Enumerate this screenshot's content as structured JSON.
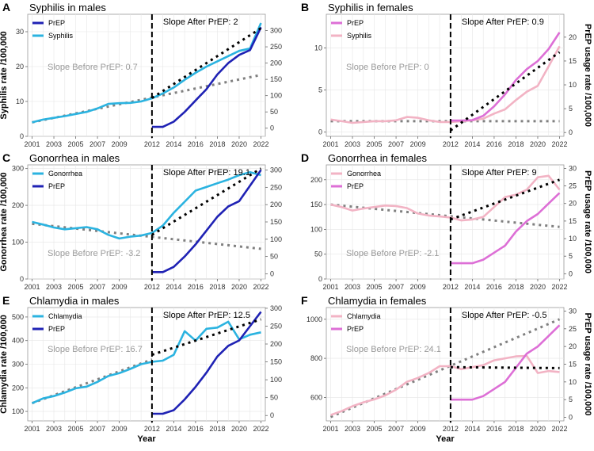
{
  "x_axis_title": "Year",
  "right_axis_title": "PrEP usage rate /100,000",
  "colors": {
    "prep_male": "#1f22b4",
    "disease_male": "#2bb3e0",
    "prep_female": "#dd6fd6",
    "disease_female": "#f2b3c4",
    "before_trend": "#808080",
    "after_trend": "#000000",
    "grid": "#e6e6e6"
  },
  "chart_data": [
    {
      "id": "A",
      "type": "line",
      "panel_letter": "A",
      "title": "Syphilis in males",
      "ylabel": "Syphilis rate /100,000",
      "left_ylim": [
        0,
        35
      ],
      "left_ticks": [
        0,
        10,
        20,
        30
      ],
      "right_ylim": [
        -25,
        350
      ],
      "right_ticks": [
        0,
        50,
        100,
        150,
        200,
        250,
        300
      ],
      "xlim": [
        2000.6,
        2022.4
      ],
      "x_ticks": [
        "2001",
        "2003",
        "2005",
        "2007",
        "2009",
        "2012",
        "2014",
        "2016",
        "2018",
        "2020",
        "2022"
      ],
      "show_year_label": false,
      "legend": [
        {
          "label": "PrEP",
          "series": "prep"
        },
        {
          "label": "Syphilis",
          "series": "disease"
        }
      ],
      "disease": {
        "name": "Syphilis",
        "color": "#2bb3e0",
        "x": [
          2001,
          2002,
          2003,
          2004,
          2005,
          2006,
          2007,
          2008,
          2009,
          2010,
          2011,
          2012,
          2013,
          2014,
          2015,
          2016,
          2017,
          2018,
          2019,
          2020,
          2021,
          2022
        ],
        "y": [
          4,
          4.8,
          5.3,
          5.8,
          6.4,
          7,
          8,
          9.3,
          9.5,
          9.6,
          10,
          10.9,
          12.3,
          14,
          16.2,
          18.2,
          20,
          21.5,
          23,
          24.5,
          25.2,
          32.5
        ]
      },
      "prep": {
        "name": "PrEP",
        "color": "#1f22b4",
        "x": [
          2012,
          2013,
          2014,
          2015,
          2016,
          2017,
          2018,
          2019,
          2020,
          2021,
          2022
        ],
        "y": [
          4,
          4,
          20,
          50,
          85,
          120,
          165,
          200,
          225,
          240,
          310
        ]
      },
      "before_trend": {
        "x": [
          2001,
          2022
        ],
        "y": [
          4,
          17.6
        ]
      },
      "after_trend": {
        "x": [
          2012,
          2022
        ],
        "y": [
          11,
          31
        ]
      },
      "slope_before": "Slope Before PrEP: 0.7",
      "slope_after": "Slope After PrEP: 2"
    },
    {
      "id": "B",
      "type": "line",
      "panel_letter": "B",
      "title": "Syphilis in females",
      "ylabel": "",
      "left_ylim": [
        -0.5,
        14
      ],
      "left_ticks": [
        0,
        5,
        10
      ],
      "right_ylim": [
        -0.8,
        24.8
      ],
      "right_ticks": [
        0,
        5,
        10,
        15,
        20
      ],
      "xlim": [
        2000.6,
        2022.4
      ],
      "x_ticks": [
        "2001",
        "2003",
        "2005",
        "2007",
        "2009",
        "2012",
        "2014",
        "2016",
        "2018",
        "2020",
        "2022"
      ],
      "show_year_label": false,
      "legend": [
        {
          "label": "PrEP",
          "series": "prep"
        },
        {
          "label": "Syphilis",
          "series": "disease"
        }
      ],
      "disease": {
        "name": "Syphilis",
        "color": "#f2b3c4",
        "x": [
          2001,
          2002,
          2003,
          2004,
          2005,
          2006,
          2007,
          2008,
          2009,
          2010,
          2011,
          2012,
          2013,
          2014,
          2015,
          2016,
          2017,
          2018,
          2019,
          2020,
          2021,
          2022
        ],
        "y": [
          1.5,
          1.3,
          1.1,
          1.2,
          1.3,
          1.3,
          1.4,
          1.8,
          1.7,
          1.4,
          1.2,
          1.2,
          1.3,
          1.4,
          1.6,
          2.2,
          2.7,
          3.8,
          4.8,
          5.5,
          7.8,
          10.2
        ]
      },
      "prep": {
        "name": "PrEP",
        "color": "#dd6fd6",
        "x": [
          2012,
          2013,
          2014,
          2015,
          2016,
          2017,
          2018,
          2019,
          2020,
          2021,
          2022
        ],
        "y": [
          2.5,
          2.5,
          2.6,
          3.5,
          5.5,
          8,
          11,
          13.3,
          15,
          17.5,
          21
        ]
      },
      "before_trend": {
        "x": [
          2001,
          2022
        ],
        "y": [
          1.3,
          1.3
        ]
      },
      "after_trend": {
        "x": [
          2012,
          2022
        ],
        "y": [
          0.2,
          9.5
        ]
      },
      "slope_before": "Slope Before PrEP: 0",
      "slope_after": "Slope After PrEP: 0.9"
    },
    {
      "id": "C",
      "type": "line",
      "panel_letter": "C",
      "title": "Gonorrhea in males",
      "ylabel": "Gonorrhea rate /100,000",
      "left_ylim": [
        0,
        310
      ],
      "left_ticks": [
        0,
        100,
        200,
        300
      ],
      "right_ylim": [
        -15,
        315
      ],
      "right_ticks": [
        0,
        50,
        100,
        150,
        200,
        250,
        300
      ],
      "xlim": [
        2000.6,
        2022.4
      ],
      "x_ticks": [
        "2001",
        "2003",
        "2005",
        "2007",
        "2009",
        "2012",
        "2014",
        "2016",
        "2018",
        "2020",
        "2022"
      ],
      "show_year_label": false,
      "legend": [
        {
          "label": "Gonorrhea",
          "series": "disease"
        },
        {
          "label": "PrEP",
          "series": "prep"
        }
      ],
      "disease": {
        "name": "Gonorrhea",
        "color": "#2bb3e0",
        "x": [
          2001,
          2002,
          2003,
          2004,
          2005,
          2006,
          2007,
          2008,
          2009,
          2010,
          2011,
          2012,
          2013,
          2014,
          2015,
          2016,
          2017,
          2018,
          2019,
          2020,
          2021,
          2022
        ],
        "y": [
          155,
          148,
          140,
          135,
          138,
          141,
          135,
          120,
          110,
          115,
          118,
          125,
          145,
          180,
          210,
          240,
          250,
          260,
          270,
          282,
          290,
          282
        ]
      },
      "prep": {
        "name": "PrEP",
        "color": "#1f22b4",
        "x": [
          2012,
          2013,
          2014,
          2015,
          2016,
          2017,
          2018,
          2019,
          2020,
          2021,
          2022
        ],
        "y": [
          5,
          5,
          20,
          50,
          85,
          125,
          165,
          195,
          210,
          255,
          300
        ]
      },
      "before_trend": {
        "x": [
          2001,
          2022
        ],
        "y": [
          150,
          82
        ]
      },
      "after_trend": {
        "x": [
          2012,
          2022
        ],
        "y": [
          120,
          300
        ]
      },
      "slope_before": "Slope Before PrEP: -3.2",
      "slope_after": "Slope After PrEP: 19.1"
    },
    {
      "id": "D",
      "type": "line",
      "panel_letter": "D",
      "title": "Gonorrhea in females",
      "ylabel": "",
      "left_ylim": [
        0,
        230
      ],
      "left_ticks": [
        0,
        50,
        100,
        150,
        200
      ],
      "right_ylim": [
        -1.5,
        31
      ],
      "right_ticks": [
        0,
        5,
        10,
        15,
        20,
        25,
        30
      ],
      "xlim": [
        2000.6,
        2022.4
      ],
      "x_ticks": [
        "2001",
        "2003",
        "2005",
        "2007",
        "2009",
        "2012",
        "2014",
        "2016",
        "2018",
        "2020",
        "2022"
      ],
      "show_year_label": false,
      "legend": [
        {
          "label": "Gonorrhea",
          "series": "disease"
        },
        {
          "label": "PrEP",
          "series": "prep"
        }
      ],
      "disease": {
        "name": "Gonorrhea",
        "color": "#f2b3c4",
        "x": [
          2001,
          2002,
          2003,
          2004,
          2005,
          2006,
          2007,
          2008,
          2009,
          2010,
          2011,
          2012,
          2013,
          2014,
          2015,
          2016,
          2017,
          2018,
          2019,
          2020,
          2021,
          2022
        ],
        "y": [
          150,
          145,
          138,
          142,
          145,
          148,
          147,
          143,
          132,
          128,
          126,
          124,
          118,
          120,
          125,
          145,
          165,
          170,
          180,
          205,
          208,
          180
        ]
      },
      "prep": {
        "name": "PrEP",
        "color": "#dd6fd6",
        "x": [
          2012,
          2013,
          2014,
          2015,
          2016,
          2017,
          2018,
          2019,
          2020,
          2021,
          2022
        ],
        "y": [
          3,
          3,
          3,
          4,
          6,
          8,
          12,
          15,
          17,
          20,
          23
        ]
      },
      "before_trend": {
        "x": [
          2001,
          2022
        ],
        "y": [
          150,
          105
        ]
      },
      "after_trend": {
        "x": [
          2012,
          2022
        ],
        "y": [
          120,
          200
        ]
      },
      "slope_before": "Slope Before PrEP: -2.1",
      "slope_after": "Slope After PrEP: 9"
    },
    {
      "id": "E",
      "type": "line",
      "panel_letter": "E",
      "title": "Chlamydia in males",
      "ylabel": "Chlamydia rate /100,000",
      "left_ylim": [
        60,
        540
      ],
      "left_ticks": [
        100,
        200,
        300,
        400,
        500
      ],
      "right_ylim": [
        -15,
        302
      ],
      "right_ticks": [
        0,
        50,
        100,
        150,
        200,
        250,
        300
      ],
      "xlim": [
        2000.6,
        2022.4
      ],
      "x_ticks": [
        "2001",
        "2003",
        "2005",
        "2007",
        "2009",
        "2012",
        "2014",
        "2016",
        "2018",
        "2020",
        "2022"
      ],
      "show_year_label": true,
      "legend": [
        {
          "label": "Chlamydia",
          "series": "disease"
        },
        {
          "label": "PrEP",
          "series": "prep"
        }
      ],
      "disease": {
        "name": "Chlamydia",
        "color": "#2bb3e0",
        "x": [
          2001,
          2002,
          2003,
          2004,
          2005,
          2006,
          2007,
          2008,
          2009,
          2010,
          2011,
          2012,
          2013,
          2014,
          2015,
          2016,
          2017,
          2018,
          2019,
          2020,
          2021,
          2022
        ],
        "y": [
          135,
          155,
          165,
          180,
          198,
          205,
          225,
          250,
          262,
          280,
          300,
          310,
          315,
          340,
          440,
          400,
          450,
          455,
          480,
          405,
          425,
          435
        ]
      },
      "prep": {
        "name": "PrEP",
        "color": "#1f22b4",
        "x": [
          2012,
          2013,
          2014,
          2015,
          2016,
          2017,
          2018,
          2019,
          2020,
          2021,
          2022
        ],
        "y": [
          5,
          5,
          15,
          45,
          80,
          120,
          165,
          195,
          210,
          250,
          290
        ]
      },
      "before_trend": {
        "x": [
          2001,
          2012
        ],
        "y": [
          135,
          320
        ]
      },
      "after_trend": {
        "x": [
          2012,
          2022
        ],
        "y": [
          340,
          490
        ]
      },
      "slope_before": "Slope Before PrEP: 16.7",
      "slope_after": "Slope After PrEP: 12.5"
    },
    {
      "id": "F",
      "type": "line",
      "panel_letter": "F",
      "title": "Chlamydia in females",
      "ylabel": "",
      "left_ylim": [
        480,
        1060
      ],
      "left_ticks": [
        600,
        800,
        1000
      ],
      "right_ylim": [
        -1,
        31
      ],
      "right_ticks": [
        0,
        5,
        10,
        15,
        20,
        25,
        30
      ],
      "xlim": [
        2000.6,
        2022.4
      ],
      "x_ticks": [
        "2001",
        "2003",
        "2005",
        "2007",
        "2009",
        "2012",
        "2014",
        "2016",
        "2018",
        "2020",
        "2022"
      ],
      "show_year_label": true,
      "legend": [
        {
          "label": "Chlamydia",
          "series": "disease"
        },
        {
          "label": "PrEP",
          "series": "prep"
        }
      ],
      "disease": {
        "name": "Chlamydia",
        "color": "#f2b3c4",
        "x": [
          2001,
          2002,
          2003,
          2004,
          2005,
          2006,
          2007,
          2008,
          2009,
          2010,
          2011,
          2012,
          2013,
          2014,
          2015,
          2016,
          2017,
          2018,
          2019,
          2020,
          2021,
          2022
        ],
        "y": [
          510,
          530,
          555,
          575,
          590,
          610,
          640,
          680,
          700,
          725,
          760,
          760,
          745,
          755,
          765,
          790,
          800,
          810,
          812,
          725,
          735,
          730
        ]
      },
      "prep": {
        "name": "PrEP",
        "color": "#dd6fd6",
        "x": [
          2012,
          2013,
          2014,
          2015,
          2016,
          2017,
          2018,
          2019,
          2020,
          2021,
          2022
        ],
        "y": [
          5,
          5,
          5,
          6,
          8,
          10,
          14,
          18,
          20,
          23,
          26
        ]
      },
      "before_trend": {
        "x": [
          2001,
          2022
        ],
        "y": [
          500,
          1000
        ]
      },
      "after_trend": {
        "x": [
          2012,
          2022
        ],
        "y": [
          755,
          750
        ]
      },
      "slope_before": "Slope Before PrEP: 24.1",
      "slope_after": "Slope After PrEP: -0.5"
    }
  ]
}
